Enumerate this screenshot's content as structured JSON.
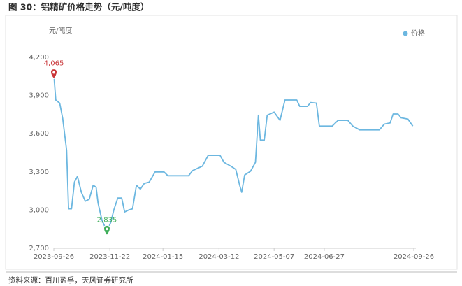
{
  "chart_data": {
    "type": "line",
    "title": "图 30：铝精矿价格走势（元/吨度）",
    "y_label": "元/吨度",
    "source": "资料来源：百川盈孚，天风证券研究所",
    "legend_position": "top-right",
    "grid": false,
    "xlim": [
      "2023-09-26",
      "2024-09-26"
    ],
    "xticks": [
      "2023-09-26",
      "2023-11-22",
      "2024-01-15",
      "2024-03-12",
      "2024-05-07",
      "2024-06-27",
      "2024-09-26"
    ],
    "ylim": [
      2700,
      4200
    ],
    "yticks": [
      {
        "value": 2700,
        "label": "2,700"
      },
      {
        "value": 3000,
        "label": "3,000"
      },
      {
        "value": 3300,
        "label": "3,300"
      },
      {
        "value": 3600,
        "label": "3,600"
      },
      {
        "value": 3900,
        "label": "3,900"
      },
      {
        "value": 4200,
        "label": "4,200"
      }
    ],
    "x": [
      "2023-09-26",
      "2023-09-28",
      "2023-10-02",
      "2023-10-05",
      "2023-10-09",
      "2023-10-11",
      "2023-10-14",
      "2023-10-17",
      "2023-10-20",
      "2023-10-24",
      "2023-10-28",
      "2023-11-01",
      "2023-11-05",
      "2023-11-08",
      "2023-11-10",
      "2023-11-14",
      "2023-11-19",
      "2023-11-23",
      "2023-11-26",
      "2023-11-30",
      "2023-12-04",
      "2023-12-07",
      "2023-12-11",
      "2023-12-15",
      "2023-12-19",
      "2023-12-23",
      "2023-12-27",
      "2024-01-01",
      "2024-01-07",
      "2024-01-16",
      "2024-01-20",
      "2024-02-10",
      "2024-02-14",
      "2024-02-24",
      "2024-03-01",
      "2024-03-13",
      "2024-03-17",
      "2024-03-24",
      "2024-03-29",
      "2024-04-02",
      "2024-04-04",
      "2024-04-07",
      "2024-04-13",
      "2024-04-18",
      "2024-04-21",
      "2024-04-23",
      "2024-04-27",
      "2024-04-30",
      "2024-05-07",
      "2024-05-13",
      "2024-05-18",
      "2024-05-30",
      "2024-06-02",
      "2024-06-10",
      "2024-06-13",
      "2024-06-19",
      "2024-06-22",
      "2024-07-05",
      "2024-07-11",
      "2024-07-21",
      "2024-07-26",
      "2024-08-02",
      "2024-08-22",
      "2024-08-27",
      "2024-09-02",
      "2024-09-05",
      "2024-09-10",
      "2024-09-13",
      "2024-09-20",
      "2024-09-25"
    ],
    "series": [
      {
        "name": "价格",
        "color": "#6cb7e0",
        "values": [
          4065,
          3865,
          3840,
          3720,
          3470,
          3010,
          3010,
          3220,
          3265,
          3140,
          3070,
          3085,
          3195,
          3180,
          3055,
          2920,
          2835,
          2905,
          3000,
          3095,
          3095,
          2985,
          3000,
          3010,
          3195,
          3165,
          3210,
          3220,
          3300,
          3300,
          3270,
          3270,
          3310,
          3345,
          3430,
          3430,
          3375,
          3345,
          3320,
          3195,
          3140,
          3275,
          3305,
          3375,
          3745,
          3550,
          3550,
          3745,
          3770,
          3705,
          3865,
          3865,
          3815,
          3815,
          3845,
          3840,
          3660,
          3660,
          3705,
          3705,
          3660,
          3630,
          3630,
          3675,
          3685,
          3755,
          3755,
          3725,
          3715,
          3660
        ]
      }
    ],
    "markers": [
      {
        "x": "2023-09-26",
        "value": 4065,
        "label": "4,065",
        "color": "#c9373a"
      },
      {
        "x": "2023-11-19",
        "value": 2835,
        "label": "2,835",
        "color": "#3fae5a"
      }
    ]
  }
}
